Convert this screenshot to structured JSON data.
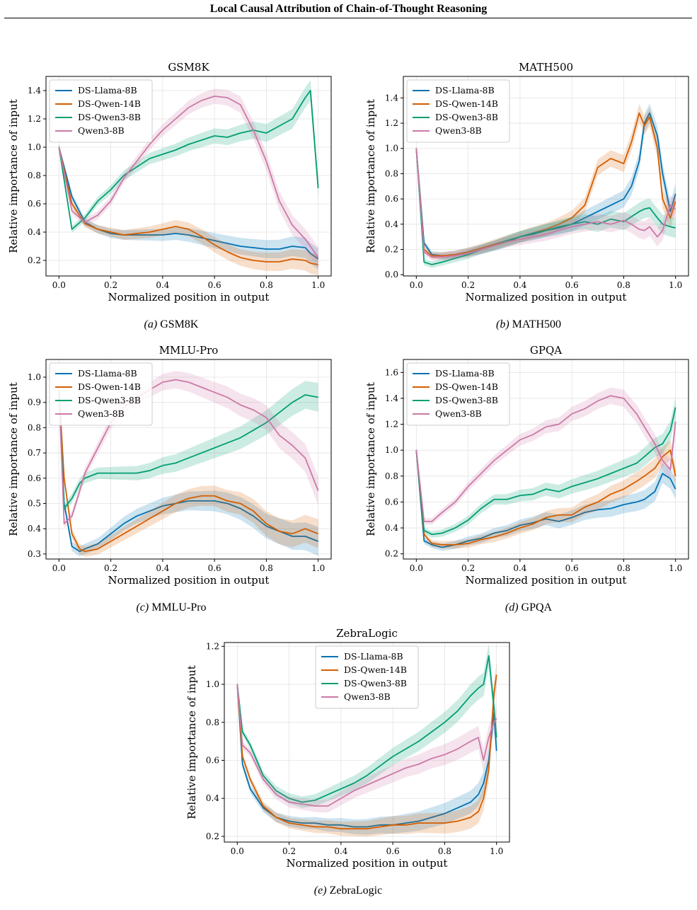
{
  "page": {
    "running_header": "Local Causal Attribution of Chain-of-Thought Reasoning",
    "footer_text": ""
  },
  "colors": {
    "DS-Llama-8B": "#0072B2",
    "DS-Qwen-14B": "#D55E00",
    "DS-Qwen3-8B": "#009E73",
    "Qwen3-8B": "#CC79A7"
  },
  "captions": [
    {
      "label": "(a)",
      "text": "GSM8K"
    },
    {
      "label": "(b)",
      "text": "MATH500"
    },
    {
      "label": "(c)",
      "text": "MMLU-Pro"
    },
    {
      "label": "(d)",
      "text": "GPQA"
    },
    {
      "label": "(e)",
      "text": "ZebraLogic"
    }
  ],
  "chart_data": [
    {
      "type": "line",
      "title": "GSM8K",
      "xlabel": "Normalized position in output",
      "ylabel": "Relative importance of input",
      "xlim": [
        -0.05,
        1.05
      ],
      "ylim": [
        0.09,
        1.5
      ],
      "xticks": [
        "0.0",
        "0.2",
        "0.4",
        "0.6",
        "0.8",
        "1.0"
      ],
      "yticks": [
        "0.2",
        "0.4",
        "0.6",
        "0.8",
        "1.0",
        "1.2",
        "1.4"
      ],
      "grid": true,
      "legend": "top-left",
      "shaded_bands": true,
      "x": [
        0,
        0.05,
        0.1,
        0.15,
        0.2,
        0.25,
        0.3,
        0.35,
        0.4,
        0.45,
        0.5,
        0.55,
        0.6,
        0.65,
        0.7,
        0.75,
        0.8,
        0.85,
        0.9,
        0.95,
        0.97,
        1.0
      ],
      "series": [
        {
          "name": "DS-Llama-8B",
          "values": [
            1.0,
            0.65,
            0.47,
            0.42,
            0.39,
            0.38,
            0.38,
            0.38,
            0.38,
            0.39,
            0.38,
            0.36,
            0.34,
            0.32,
            0.3,
            0.29,
            0.28,
            0.28,
            0.3,
            0.29,
            0.25,
            0.21
          ]
        },
        {
          "name": "DS-Qwen-14B",
          "values": [
            1.0,
            0.6,
            0.46,
            0.42,
            0.4,
            0.38,
            0.39,
            0.4,
            0.42,
            0.44,
            0.42,
            0.37,
            0.31,
            0.26,
            0.22,
            0.2,
            0.19,
            0.19,
            0.21,
            0.2,
            0.18,
            0.17
          ]
        },
        {
          "name": "DS-Qwen3-8B",
          "values": [
            1.0,
            0.42,
            0.5,
            0.62,
            0.7,
            0.8,
            0.86,
            0.92,
            0.95,
            0.98,
            1.02,
            1.05,
            1.08,
            1.07,
            1.1,
            1.12,
            1.1,
            1.15,
            1.2,
            1.35,
            1.4,
            0.71
          ]
        },
        {
          "name": "Qwen3-8B",
          "values": [
            1.0,
            0.55,
            0.47,
            0.52,
            0.62,
            0.78,
            0.9,
            1.02,
            1.12,
            1.2,
            1.28,
            1.33,
            1.36,
            1.35,
            1.3,
            1.12,
            0.9,
            0.62,
            0.45,
            0.35,
            0.3,
            0.22
          ]
        }
      ]
    },
    {
      "type": "line",
      "title": "MATH500",
      "xlabel": "Normalized position in output",
      "ylabel": "Relative importance of input",
      "xlim": [
        -0.05,
        1.05
      ],
      "ylim": [
        -0.01,
        1.57
      ],
      "xticks": [
        "0.0",
        "0.2",
        "0.4",
        "0.6",
        "0.8",
        "1.0"
      ],
      "yticks": [
        "0.0",
        "0.2",
        "0.4",
        "0.6",
        "0.8",
        "1.0",
        "1.2",
        "1.4"
      ],
      "grid": true,
      "legend": "top-left",
      "shaded_bands": true,
      "x": [
        0,
        0.03,
        0.06,
        0.1,
        0.15,
        0.2,
        0.25,
        0.3,
        0.35,
        0.4,
        0.45,
        0.5,
        0.55,
        0.6,
        0.65,
        0.7,
        0.75,
        0.8,
        0.83,
        0.86,
        0.88,
        0.9,
        0.93,
        0.95,
        0.98,
        1.0
      ],
      "series": [
        {
          "name": "DS-Llama-8B",
          "values": [
            1.0,
            0.25,
            0.16,
            0.15,
            0.16,
            0.18,
            0.2,
            0.23,
            0.26,
            0.3,
            0.32,
            0.35,
            0.37,
            0.4,
            0.45,
            0.5,
            0.55,
            0.6,
            0.7,
            0.9,
            1.2,
            1.28,
            1.1,
            0.8,
            0.5,
            0.64
          ]
        },
        {
          "name": "DS-Qwen-14B",
          "values": [
            1.0,
            0.2,
            0.15,
            0.15,
            0.16,
            0.18,
            0.21,
            0.24,
            0.27,
            0.3,
            0.33,
            0.36,
            0.4,
            0.45,
            0.55,
            0.85,
            0.92,
            0.88,
            1.05,
            1.28,
            1.18,
            1.25,
            1.0,
            0.6,
            0.45,
            0.58
          ]
        },
        {
          "name": "DS-Qwen3-8B",
          "values": [
            1.0,
            0.1,
            0.08,
            0.1,
            0.13,
            0.16,
            0.2,
            0.23,
            0.27,
            0.3,
            0.33,
            0.35,
            0.38,
            0.4,
            0.42,
            0.4,
            0.44,
            0.42,
            0.46,
            0.5,
            0.52,
            0.53,
            0.45,
            0.4,
            0.38,
            0.37
          ]
        },
        {
          "name": "Qwen3-8B",
          "values": [
            1.0,
            0.18,
            0.14,
            0.14,
            0.15,
            0.17,
            0.2,
            0.23,
            0.26,
            0.28,
            0.3,
            0.32,
            0.35,
            0.38,
            0.4,
            0.42,
            0.4,
            0.43,
            0.4,
            0.36,
            0.35,
            0.38,
            0.3,
            0.35,
            0.55,
            0.52
          ]
        }
      ]
    },
    {
      "type": "line",
      "title": "MMLU-Pro",
      "xlabel": "Normalized position in output",
      "ylabel": "Relative importance of input",
      "xlim": [
        -0.05,
        1.05
      ],
      "ylim": [
        0.28,
        1.07
      ],
      "xticks": [
        "0.0",
        "0.2",
        "0.4",
        "0.6",
        "0.8",
        "1.0"
      ],
      "yticks": [
        "0.3",
        "0.4",
        "0.5",
        "0.6",
        "0.7",
        "0.8",
        "0.9",
        "1.0"
      ],
      "grid": true,
      "legend": "top-left",
      "shaded_bands": true,
      "x": [
        0,
        0.02,
        0.05,
        0.08,
        0.1,
        0.15,
        0.2,
        0.25,
        0.3,
        0.35,
        0.4,
        0.45,
        0.5,
        0.55,
        0.6,
        0.65,
        0.7,
        0.75,
        0.8,
        0.85,
        0.9,
        0.95,
        1.0
      ],
      "series": [
        {
          "name": "DS-Llama-8B",
          "values": [
            0.95,
            0.5,
            0.33,
            0.31,
            0.32,
            0.34,
            0.38,
            0.42,
            0.45,
            0.47,
            0.49,
            0.5,
            0.51,
            0.51,
            0.51,
            0.5,
            0.48,
            0.45,
            0.41,
            0.39,
            0.37,
            0.37,
            0.35
          ]
        },
        {
          "name": "DS-Qwen-14B",
          "values": [
            0.95,
            0.6,
            0.38,
            0.32,
            0.31,
            0.32,
            0.35,
            0.38,
            0.41,
            0.44,
            0.47,
            0.5,
            0.52,
            0.53,
            0.53,
            0.51,
            0.5,
            0.47,
            0.42,
            0.39,
            0.38,
            0.4,
            0.38
          ]
        },
        {
          "name": "DS-Qwen3-8B",
          "values": [
            0.95,
            0.48,
            0.52,
            0.58,
            0.6,
            0.62,
            0.62,
            0.62,
            0.62,
            0.63,
            0.65,
            0.66,
            0.68,
            0.7,
            0.72,
            0.74,
            0.76,
            0.79,
            0.82,
            0.86,
            0.9,
            0.93,
            0.92
          ]
        },
        {
          "name": "Qwen3-8B",
          "values": [
            0.95,
            0.42,
            0.45,
            0.55,
            0.62,
            0.72,
            0.82,
            0.88,
            0.92,
            0.95,
            0.98,
            0.99,
            0.98,
            0.96,
            0.94,
            0.92,
            0.89,
            0.87,
            0.84,
            0.77,
            0.73,
            0.68,
            0.55
          ]
        }
      ]
    },
    {
      "type": "line",
      "title": "GPQA",
      "xlabel": "Normalized position in output",
      "ylabel": "Relative importance of input",
      "xlim": [
        -0.05,
        1.05
      ],
      "ylim": [
        0.16,
        1.7
      ],
      "xticks": [
        "0.0",
        "0.2",
        "0.4",
        "0.6",
        "0.8",
        "1.0"
      ],
      "yticks": [
        "0.2",
        "0.4",
        "0.6",
        "0.8",
        "1.0",
        "1.2",
        "1.4",
        "1.6"
      ],
      "grid": true,
      "legend": "top-left",
      "shaded_bands": true,
      "x": [
        0,
        0.03,
        0.06,
        0.1,
        0.15,
        0.2,
        0.25,
        0.3,
        0.35,
        0.4,
        0.45,
        0.5,
        0.55,
        0.6,
        0.65,
        0.7,
        0.75,
        0.8,
        0.85,
        0.88,
        0.92,
        0.95,
        0.98,
        1.0
      ],
      "series": [
        {
          "name": "DS-Llama-8B",
          "values": [
            1.0,
            0.3,
            0.27,
            0.25,
            0.27,
            0.3,
            0.32,
            0.36,
            0.38,
            0.42,
            0.44,
            0.47,
            0.45,
            0.48,
            0.52,
            0.54,
            0.55,
            0.58,
            0.6,
            0.62,
            0.68,
            0.82,
            0.78,
            0.7
          ]
        },
        {
          "name": "DS-Qwen-14B",
          "values": [
            1.0,
            0.35,
            0.28,
            0.27,
            0.27,
            0.28,
            0.31,
            0.33,
            0.36,
            0.4,
            0.43,
            0.48,
            0.5,
            0.5,
            0.56,
            0.6,
            0.66,
            0.7,
            0.76,
            0.8,
            0.86,
            0.95,
            1.0,
            0.8
          ]
        },
        {
          "name": "DS-Qwen3-8B",
          "values": [
            1.0,
            0.38,
            0.35,
            0.36,
            0.4,
            0.46,
            0.55,
            0.62,
            0.62,
            0.65,
            0.66,
            0.7,
            0.68,
            0.72,
            0.75,
            0.78,
            0.82,
            0.86,
            0.9,
            0.95,
            1.02,
            1.05,
            1.15,
            1.33
          ]
        },
        {
          "name": "Qwen3-8B",
          "values": [
            1.0,
            0.45,
            0.45,
            0.52,
            0.6,
            0.72,
            0.82,
            0.92,
            1.0,
            1.08,
            1.12,
            1.18,
            1.2,
            1.28,
            1.32,
            1.38,
            1.42,
            1.4,
            1.28,
            1.18,
            1.05,
            0.92,
            0.85,
            1.22
          ]
        }
      ]
    },
    {
      "type": "line",
      "title": "ZebraLogic",
      "xlabel": "Normalized position in output",
      "ylabel": "Relative importance of input",
      "xlim": [
        -0.05,
        1.05
      ],
      "ylim": [
        0.17,
        1.22
      ],
      "xticks": [
        "0.0",
        "0.2",
        "0.4",
        "0.6",
        "0.8",
        "1.0"
      ],
      "yticks": [
        "0.2",
        "0.4",
        "0.6",
        "0.8",
        "1.0",
        "1.2"
      ],
      "grid": true,
      "legend": "top-center",
      "shaded_bands": true,
      "x": [
        0,
        0.02,
        0.05,
        0.1,
        0.15,
        0.2,
        0.25,
        0.3,
        0.35,
        0.4,
        0.45,
        0.5,
        0.55,
        0.6,
        0.65,
        0.7,
        0.75,
        0.8,
        0.85,
        0.9,
        0.93,
        0.95,
        0.97,
        0.99,
        1.0
      ],
      "series": [
        {
          "name": "DS-Llama-8B",
          "values": [
            1.0,
            0.58,
            0.45,
            0.35,
            0.3,
            0.28,
            0.27,
            0.27,
            0.26,
            0.26,
            0.25,
            0.25,
            0.26,
            0.26,
            0.27,
            0.28,
            0.3,
            0.32,
            0.35,
            0.38,
            0.42,
            0.48,
            0.6,
            0.85,
            0.65
          ]
        },
        {
          "name": "DS-Qwen-14B",
          "values": [
            1.0,
            0.62,
            0.5,
            0.36,
            0.3,
            0.27,
            0.26,
            0.25,
            0.25,
            0.24,
            0.24,
            0.24,
            0.25,
            0.26,
            0.26,
            0.27,
            0.27,
            0.27,
            0.28,
            0.3,
            0.33,
            0.4,
            0.55,
            0.95,
            1.05
          ]
        },
        {
          "name": "DS-Qwen3-8B",
          "values": [
            1.0,
            0.75,
            0.68,
            0.52,
            0.44,
            0.4,
            0.38,
            0.39,
            0.42,
            0.45,
            0.48,
            0.52,
            0.57,
            0.62,
            0.66,
            0.7,
            0.75,
            0.8,
            0.86,
            0.94,
            0.98,
            1.0,
            1.15,
            0.88,
            0.72
          ]
        },
        {
          "name": "Qwen3-8B",
          "values": [
            1.0,
            0.68,
            0.64,
            0.5,
            0.42,
            0.38,
            0.37,
            0.36,
            0.36,
            0.4,
            0.44,
            0.47,
            0.5,
            0.53,
            0.56,
            0.58,
            0.61,
            0.63,
            0.66,
            0.7,
            0.72,
            0.6,
            0.72,
            0.8,
            0.82
          ]
        }
      ]
    }
  ]
}
